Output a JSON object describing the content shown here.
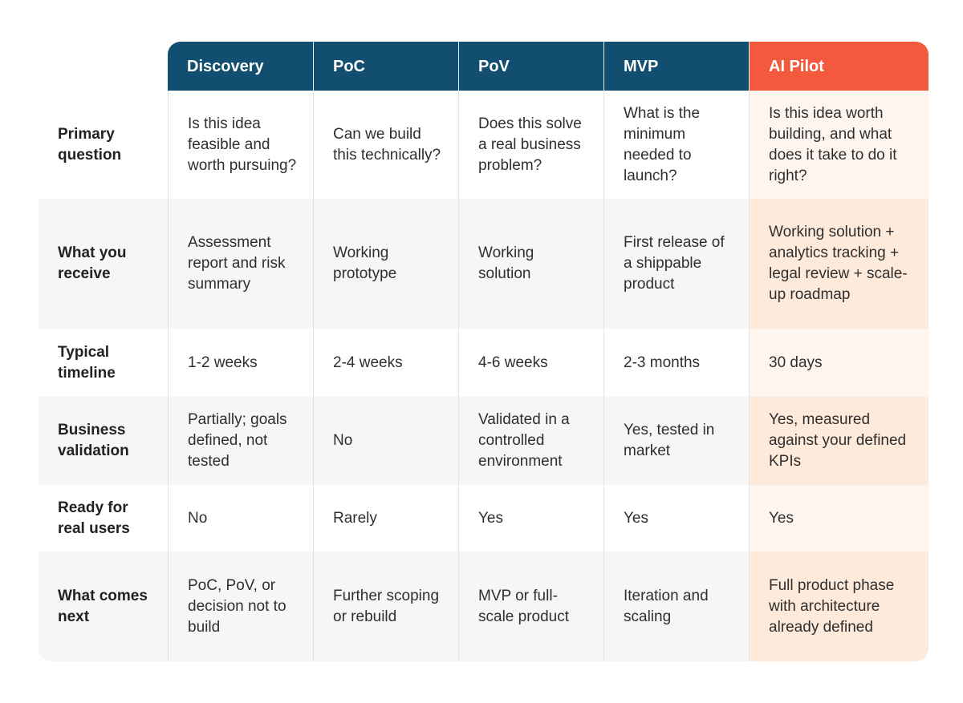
{
  "header": {
    "columns": [
      "Discovery",
      "PoC",
      "PoV",
      "MVP",
      "AI Pilot"
    ]
  },
  "table": {
    "rows": [
      {
        "label": "Primary question",
        "cells": [
          "Is this idea feasible and worth pursuing?",
          "Can we build this technically?",
          "Does this solve a real business problem?",
          "What is the minimum needed to launch?",
          "Is this idea worth building, and what does it take to do it right?"
        ]
      },
      {
        "label": "What you receive",
        "cells": [
          "Assessment report and risk summary",
          "Working prototype",
          "Working solution",
          "First release of a shippable product",
          "Working solution + analytics tracking + legal review + scale-up roadmap"
        ]
      },
      {
        "label": "Typical timeline",
        "cells": [
          "1-2 weeks",
          "2-4 weeks",
          "4-6 weeks",
          "2-3 months",
          "30 days"
        ]
      },
      {
        "label": "Business validation",
        "cells": [
          "Partially; goals defined, not tested",
          "No",
          "Validated in a controlled environment",
          "Yes, tested in market",
          "Yes, measured against your defined KPIs"
        ]
      },
      {
        "label": "Ready for real users",
        "cells": [
          "No",
          "Rarely",
          "Yes",
          "Yes",
          "Yes"
        ]
      },
      {
        "label": "What comes next",
        "cells": [
          "PoC, PoV, or decision not to build",
          "Further scoping or rebuild",
          "MVP or full-scale product",
          "Iteration and scaling",
          "Full product phase with architecture already defined"
        ]
      }
    ]
  }
}
